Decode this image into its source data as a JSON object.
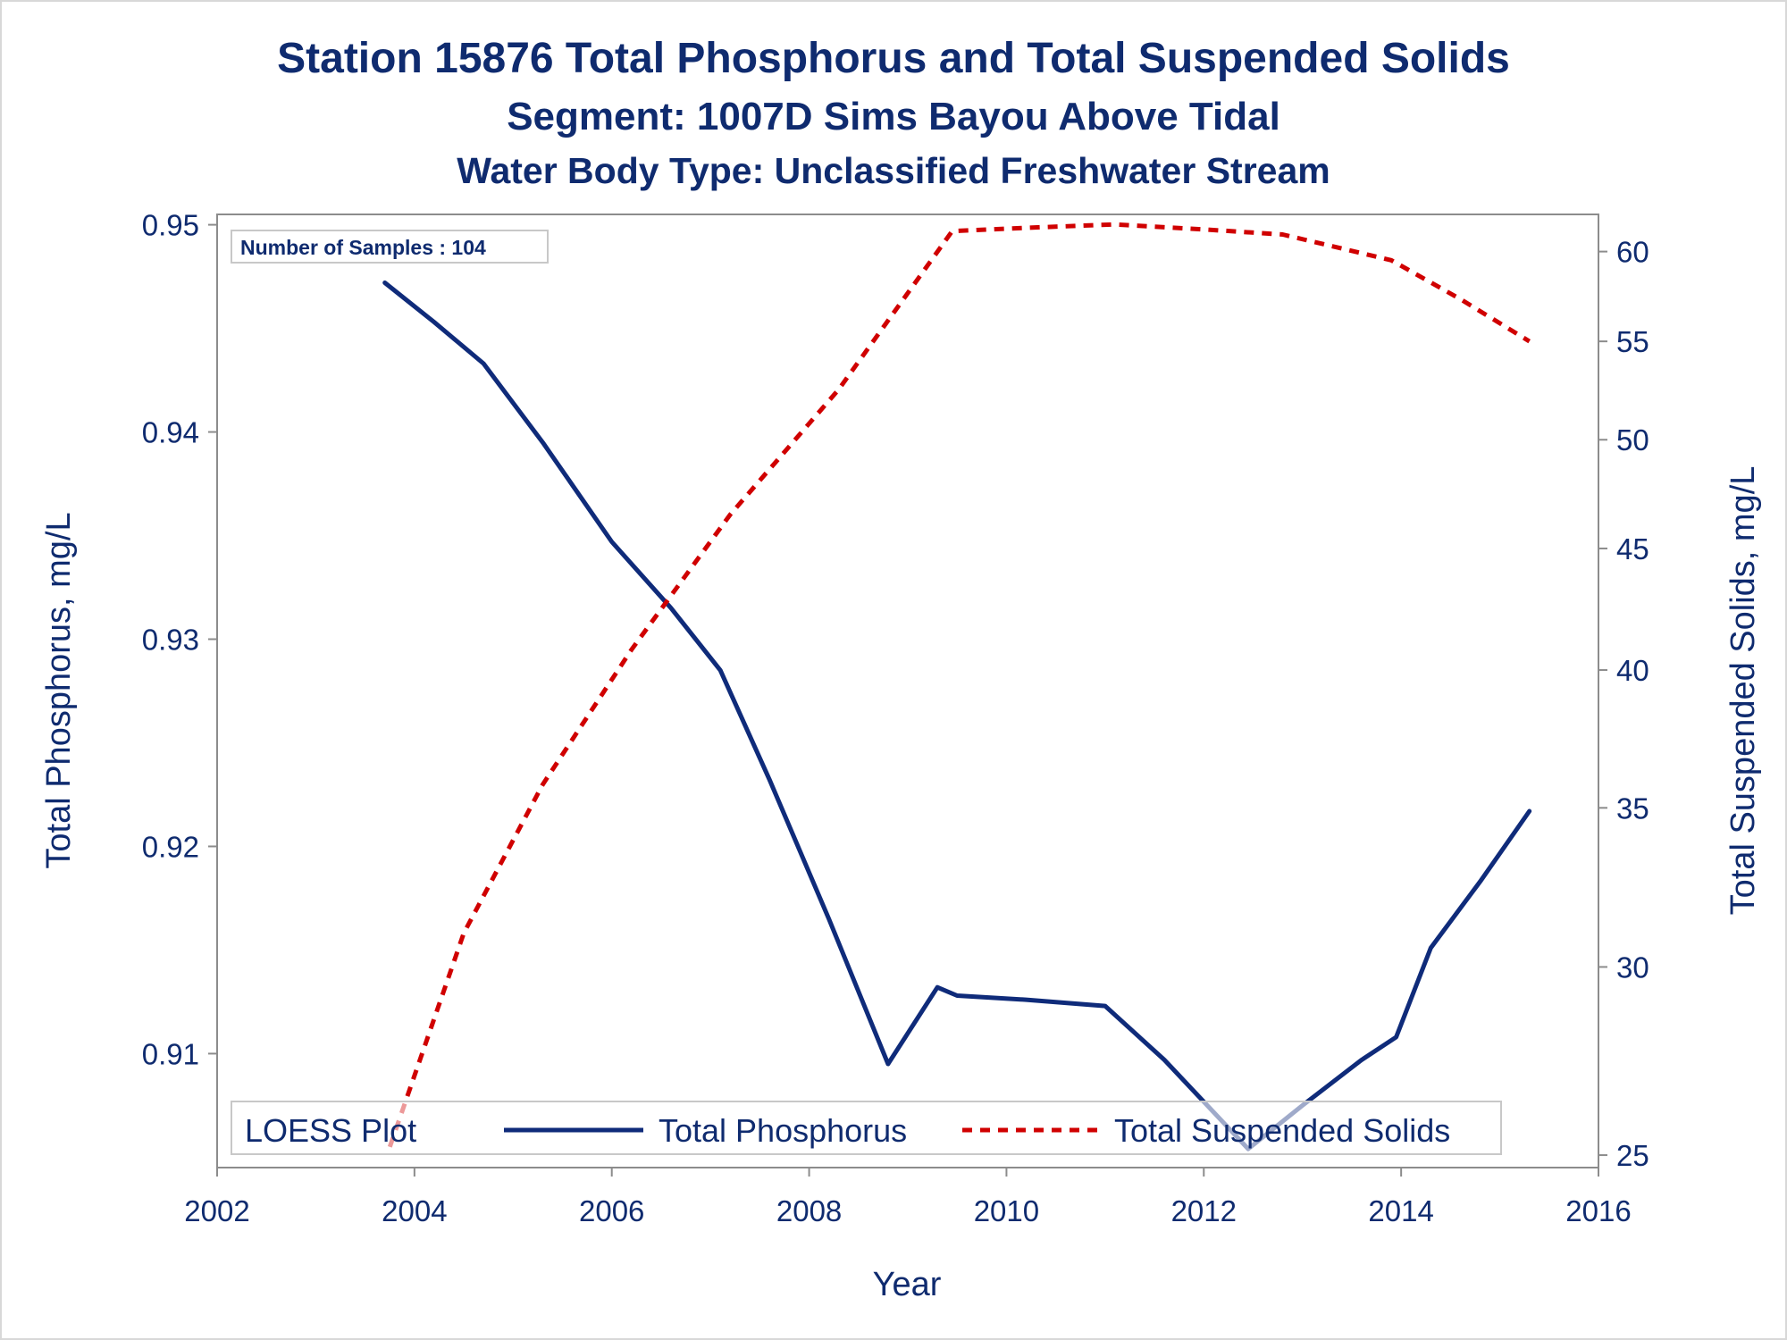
{
  "chart_data": {
    "type": "line",
    "title": "Station 15876  Total Phosphorus and Total Suspended Solids",
    "subtitle": "Segment: 1007D  Sims Bayou Above Tidal",
    "subtitle2": "Water Body Type: Unclassified Freshwater Stream",
    "xlabel": "Year",
    "ylabel_left": "Total Phosphorus, mg/L",
    "ylabel_right": "Total Suspended Solids, mg/L",
    "annotation": "Number of Samples : 104",
    "legend": {
      "title": "LOESS Plot",
      "placement": "bottom-inside",
      "entries": [
        "Total Phosphorus",
        "Total Suspended Solids"
      ]
    },
    "xlim": [
      2002,
      2016
    ],
    "xticks": [
      "2002",
      "2004",
      "2006",
      "2008",
      "2010",
      "2012",
      "2014",
      "2016"
    ],
    "ylim_left": [
      0.9045,
      0.9505
    ],
    "yticks_left": [
      "0.91",
      "0.92",
      "0.93",
      "0.94",
      "0.95"
    ],
    "right_axis_scale": "log",
    "ylim_right": [
      24.7,
      62.2
    ],
    "yticks_right": [
      "25",
      "30",
      "35",
      "40",
      "45",
      "50",
      "55",
      "60"
    ],
    "grid": false,
    "series": [
      {
        "name": "Total Phosphorus",
        "axis": "left",
        "color": "#0f2b7a",
        "style": "solid",
        "x": [
          2003.7,
          2004.2,
          2004.7,
          2005.3,
          2006.0,
          2006.6,
          2007.1,
          2007.6,
          2008.2,
          2008.8,
          2009.3,
          2009.5,
          2010.2,
          2011.0,
          2011.6,
          2012.45,
          2013.0,
          2013.6,
          2013.95,
          2014.3,
          2014.8,
          2015.3
        ],
        "values": [
          0.9472,
          0.9453,
          0.9433,
          0.9395,
          0.9347,
          0.9315,
          0.9285,
          0.9232,
          0.9165,
          0.9095,
          0.9132,
          0.9128,
          0.9126,
          0.9123,
          0.9097,
          0.9054,
          0.9075,
          0.9097,
          0.9108,
          0.9151,
          0.9183,
          0.9217
        ]
      },
      {
        "name": "Total Suspended Solids",
        "axis": "right",
        "color": "#d00000",
        "style": "dashed",
        "x": [
          2003.75,
          2004.5,
          2005.3,
          2006.2,
          2007.2,
          2008.3,
          2009.45,
          2010.2,
          2011.1,
          2012.0,
          2012.8,
          2013.9,
          2014.6,
          2015.3
        ],
        "values": [
          25.2,
          31.0,
          35.8,
          40.8,
          46.5,
          52.5,
          61.2,
          61.4,
          61.6,
          61.3,
          61.0,
          59.5,
          57.3,
          55.0
        ]
      }
    ]
  }
}
